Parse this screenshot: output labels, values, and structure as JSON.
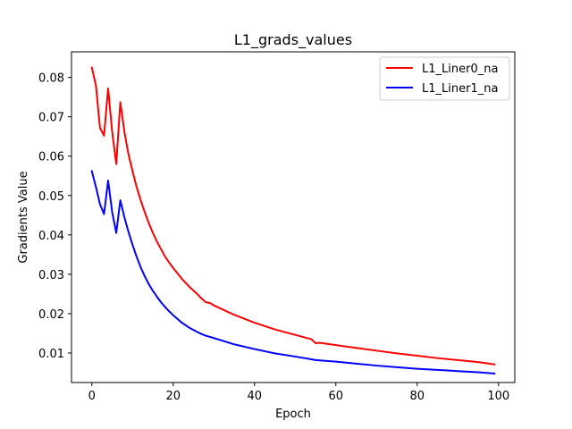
{
  "chart_data": {
    "type": "line",
    "title": "L1_grads_values",
    "xlabel": "Epoch",
    "ylabel": "Gradients Value",
    "xlim": [
      -5,
      104
    ],
    "ylim": [
      0.0025,
      0.0865
    ],
    "xticks": [
      0,
      20,
      40,
      60,
      80,
      100
    ],
    "yticks": [
      0.01,
      0.02,
      0.03,
      0.04,
      0.05,
      0.06,
      0.07,
      0.08
    ],
    "xtick_labels": [
      "0",
      "20",
      "40",
      "60",
      "80",
      "100"
    ],
    "ytick_labels": [
      "0.01",
      "0.02",
      "0.03",
      "0.04",
      "0.05",
      "0.06",
      "0.07",
      "0.08"
    ],
    "legend_position": "top-right",
    "grid": false,
    "series": [
      {
        "name": "L1_Liner0_na",
        "color": "#ff0000",
        "points": [
          [
            0,
            0.0825
          ],
          [
            1,
            0.078
          ],
          [
            2,
            0.0672
          ],
          [
            3,
            0.0652
          ],
          [
            4,
            0.0772
          ],
          [
            5,
            0.0662
          ],
          [
            6,
            0.058
          ],
          [
            7,
            0.0737
          ],
          [
            8,
            0.0662
          ],
          [
            9,
            0.0605
          ],
          [
            10,
            0.0562
          ],
          [
            11,
            0.0522
          ],
          [
            12,
            0.0488
          ],
          [
            13,
            0.0458
          ],
          [
            14,
            0.043
          ],
          [
            15,
            0.0405
          ],
          [
            16,
            0.0383
          ],
          [
            17,
            0.0364
          ],
          [
            18,
            0.0345
          ],
          [
            19,
            0.033
          ],
          [
            20,
            0.0316
          ],
          [
            22,
            0.029
          ],
          [
            24,
            0.0268
          ],
          [
            26,
            0.0249
          ],
          [
            27,
            0.0238
          ],
          [
            28,
            0.0229
          ],
          [
            29,
            0.0227
          ],
          [
            30,
            0.0221
          ],
          [
            35,
            0.0197
          ],
          [
            40,
            0.0177
          ],
          [
            45,
            0.016
          ],
          [
            50,
            0.0146
          ],
          [
            54,
            0.0135
          ],
          [
            55,
            0.0125
          ],
          [
            56,
            0.0126
          ],
          [
            60,
            0.012
          ],
          [
            65,
            0.0113
          ],
          [
            70,
            0.0106
          ],
          [
            75,
            0.0099
          ],
          [
            80,
            0.0093
          ],
          [
            85,
            0.0087
          ],
          [
            90,
            0.0082
          ],
          [
            95,
            0.0077
          ],
          [
            99,
            0.0071
          ]
        ]
      },
      {
        "name": "L1_Liner1_na",
        "color": "#0000ff",
        "points": [
          [
            0,
            0.0562
          ],
          [
            1,
            0.0522
          ],
          [
            2,
            0.0478
          ],
          [
            3,
            0.0453
          ],
          [
            4,
            0.0538
          ],
          [
            5,
            0.0458
          ],
          [
            6,
            0.0405
          ],
          [
            7,
            0.0488
          ],
          [
            8,
            0.0445
          ],
          [
            9,
            0.0408
          ],
          [
            10,
            0.0375
          ],
          [
            11,
            0.0345
          ],
          [
            12,
            0.0318
          ],
          [
            13,
            0.0295
          ],
          [
            14,
            0.0275
          ],
          [
            15,
            0.0258
          ],
          [
            16,
            0.0243
          ],
          [
            17,
            0.0229
          ],
          [
            18,
            0.0217
          ],
          [
            19,
            0.0206
          ],
          [
            20,
            0.0196
          ],
          [
            22,
            0.0178
          ],
          [
            24,
            0.0164
          ],
          [
            26,
            0.0153
          ],
          [
            27,
            0.0148
          ],
          [
            28,
            0.0144
          ],
          [
            30,
            0.0138
          ],
          [
            35,
            0.0122
          ],
          [
            40,
            0.011
          ],
          [
            45,
            0.0099
          ],
          [
            50,
            0.0091
          ],
          [
            54,
            0.0084
          ],
          [
            55,
            0.0082
          ],
          [
            60,
            0.0078
          ],
          [
            65,
            0.0073
          ],
          [
            70,
            0.0068
          ],
          [
            75,
            0.0064
          ],
          [
            80,
            0.006
          ],
          [
            85,
            0.0057
          ],
          [
            90,
            0.0054
          ],
          [
            95,
            0.0051
          ],
          [
            99,
            0.0048
          ]
        ]
      }
    ]
  }
}
